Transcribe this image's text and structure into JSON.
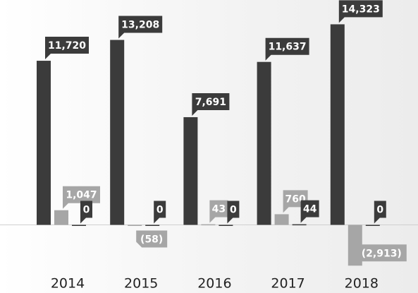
{
  "chart_data": {
    "type": "bar",
    "categories": [
      "2014",
      "2015",
      "2016",
      "2017",
      "2018"
    ],
    "series": [
      {
        "color": "#3b3b3b",
        "values": [
          11720,
          13208,
          7691,
          11637,
          14323
        ],
        "value_labels": [
          "11,720",
          "13,208",
          "7,691",
          "11,637",
          "14,323"
        ]
      },
      {
        "color": "#a6a6a6",
        "values": [
          1047,
          -58,
          43,
          760,
          -2913
        ],
        "value_labels": [
          "1,047",
          "(58)",
          "43",
          "760",
          "(2,913)"
        ]
      },
      {
        "color": "#3b3b3b",
        "values": [
          0,
          0,
          0,
          44,
          0
        ],
        "value_labels": [
          "0",
          "0",
          "0",
          "44",
          "0"
        ]
      }
    ],
    "ylim": [
      -3000,
      15000
    ]
  }
}
